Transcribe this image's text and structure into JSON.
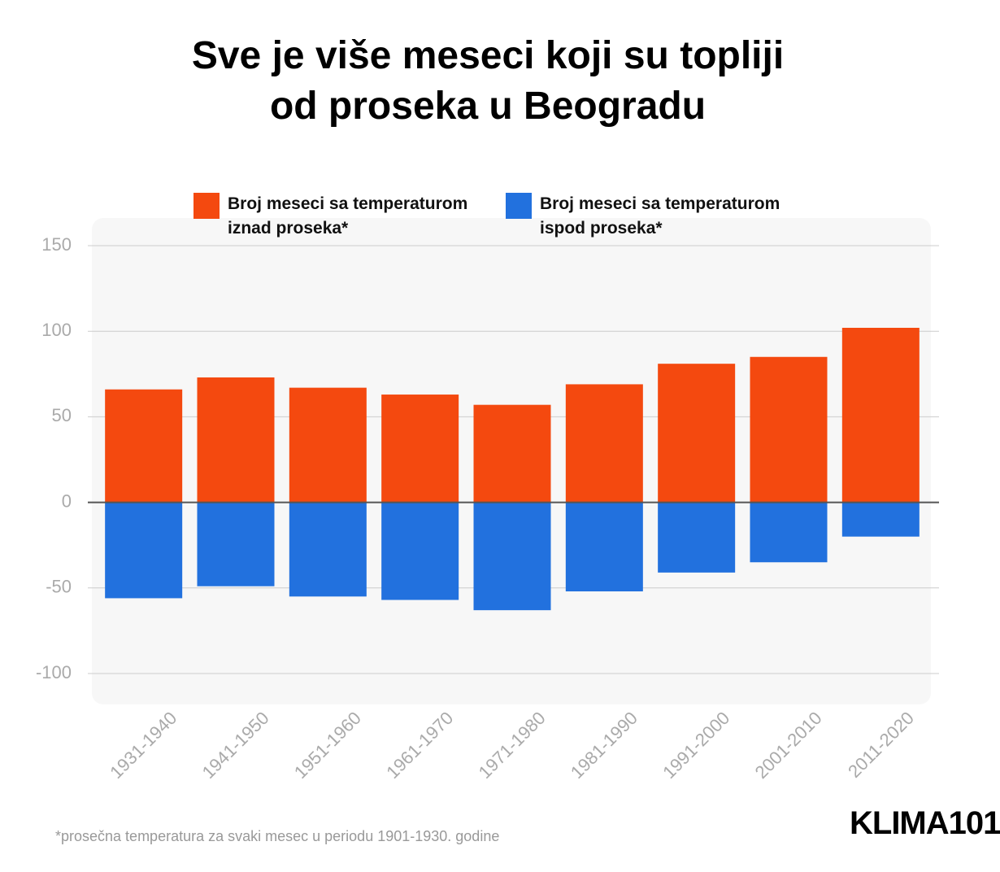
{
  "chart_data": {
    "type": "bar",
    "title": "Sve je više meseci koji su topliji od proseka u Beogradu",
    "categories": [
      "1931-1940",
      "1941-1950",
      "1951-1960",
      "1961-1970",
      "1971-1980",
      "1981-1990",
      "1991-2000",
      "2001-2010",
      "2011-2020"
    ],
    "series": [
      {
        "name": "Broj meseci sa temperaturom iznad proseka*",
        "color": "#f4490f",
        "values": [
          66,
          73,
          67,
          63,
          57,
          69,
          81,
          85,
          102
        ]
      },
      {
        "name": "Broj meseci sa temperaturom ispod proseka*",
        "color": "#2271de",
        "values": [
          -56,
          -49,
          -55,
          -57,
          -63,
          -52,
          -41,
          -35,
          -20
        ]
      }
    ],
    "ylim": [
      -100,
      150
    ],
    "yticks": [
      -100,
      -50,
      0,
      50,
      100,
      150
    ],
    "grid": true,
    "footnote": "*prosečna temperatura za svaki mesec u periodu 1901-1930. godine",
    "logo": "KLIMA101"
  }
}
